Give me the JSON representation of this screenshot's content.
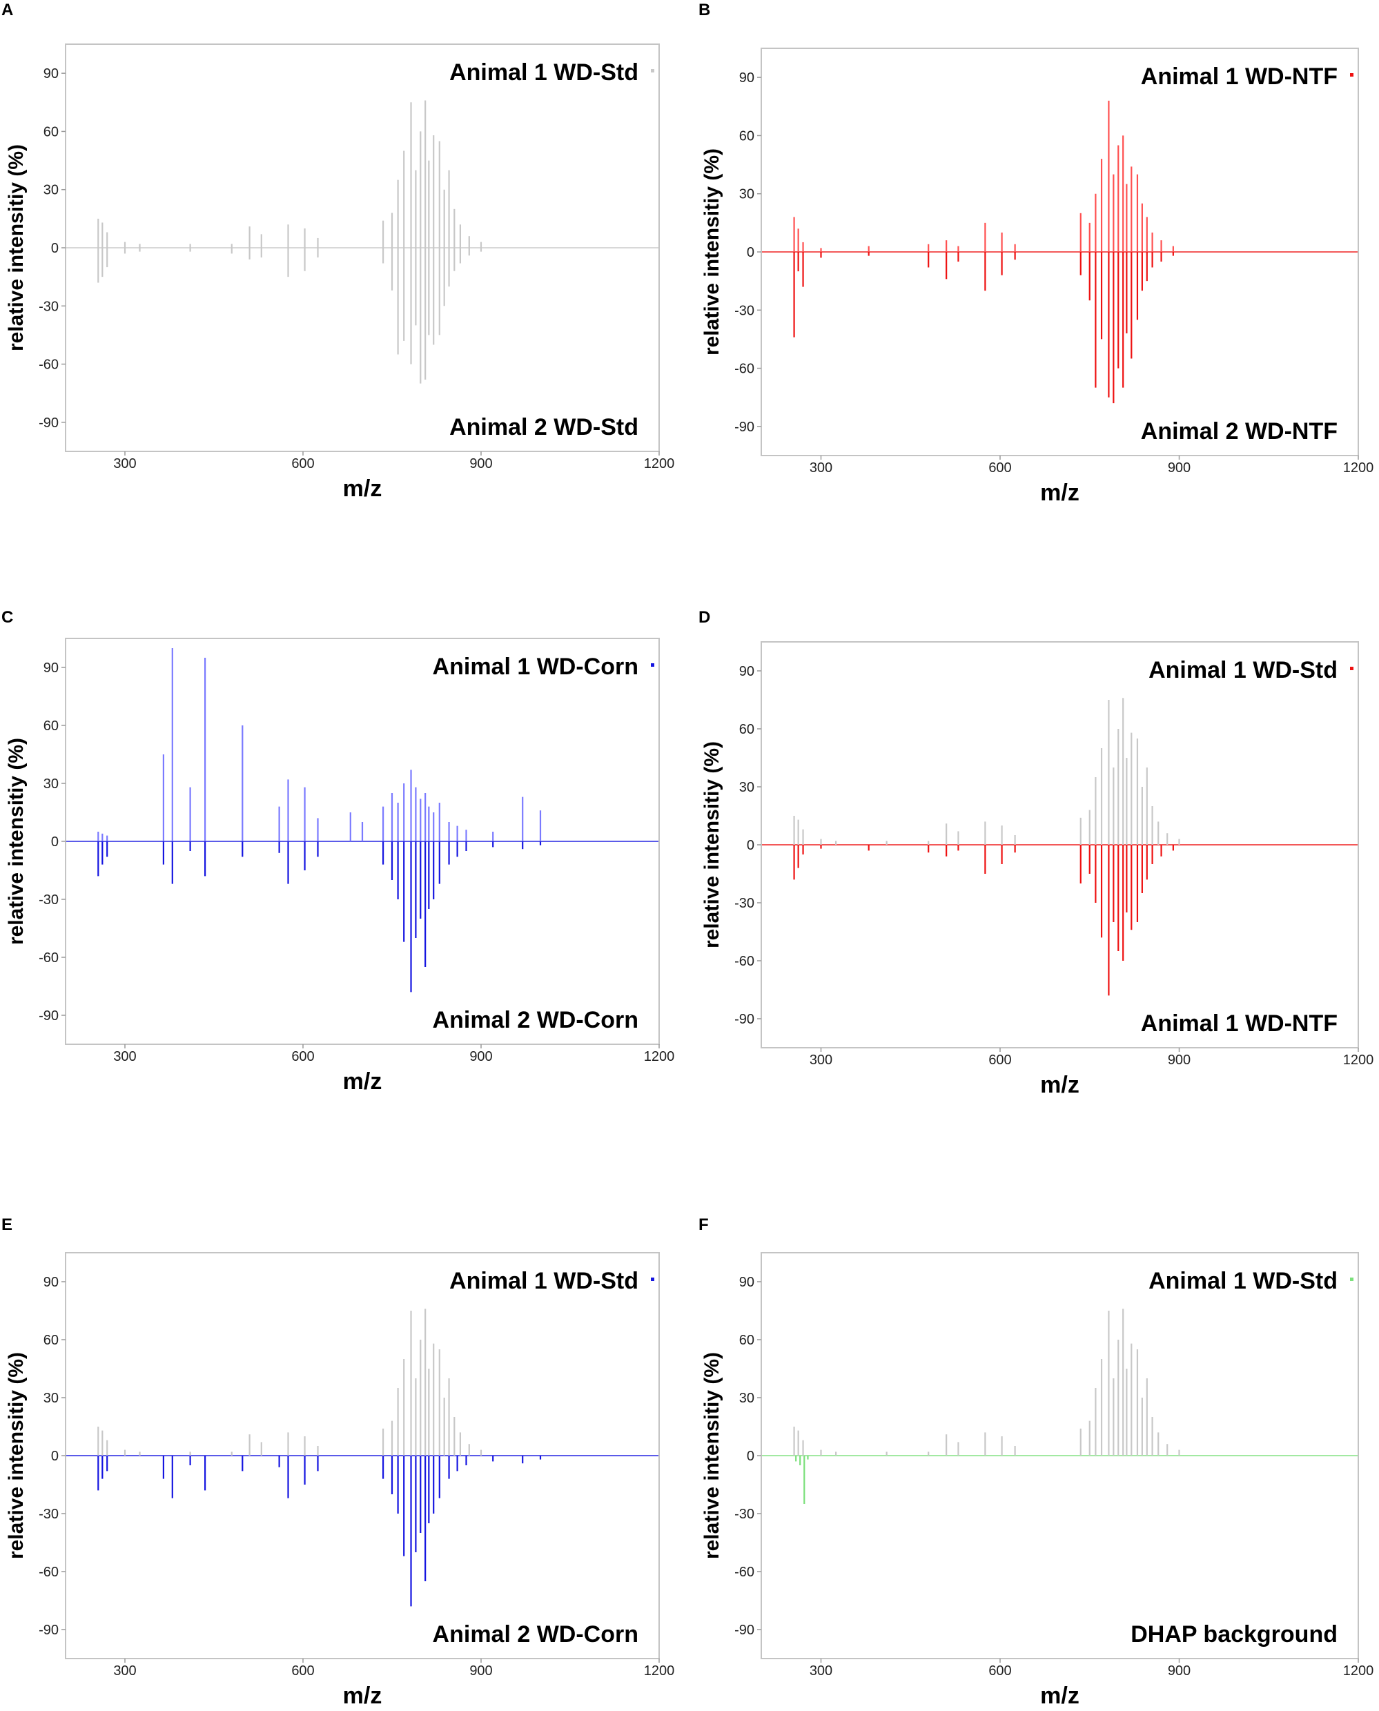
{
  "figure": {
    "panels": [
      "A",
      "B",
      "C",
      "D",
      "E",
      "F"
    ]
  },
  "chart_data": [
    {
      "panel": "A",
      "type": "mirror-spectrum",
      "xlabel": "m/z",
      "ylabel": "relative intensitiy (%)",
      "xlim": [
        200,
        1200
      ],
      "ylim": [
        -105,
        105
      ],
      "xticks": [
        300,
        600,
        900,
        1200
      ],
      "yticks": [
        90,
        60,
        30,
        0,
        -30,
        -60,
        -90
      ],
      "top_label": "Animal 1 WD-Std",
      "bottom_label": "Animal 2 WD-Std",
      "top_color": "#c8c8c8",
      "bottom_color": "#c8c8c8",
      "top_series": [
        [
          255,
          15
        ],
        [
          262,
          13
        ],
        [
          270,
          8
        ],
        [
          300,
          3
        ],
        [
          325,
          2
        ],
        [
          410,
          2
        ],
        [
          480,
          2
        ],
        [
          510,
          11
        ],
        [
          530,
          7
        ],
        [
          575,
          12
        ],
        [
          603,
          10
        ],
        [
          625,
          5
        ],
        [
          735,
          14
        ],
        [
          750,
          18
        ],
        [
          760,
          35
        ],
        [
          770,
          50
        ],
        [
          782,
          75
        ],
        [
          790,
          40
        ],
        [
          798,
          60
        ],
        [
          806,
          76
        ],
        [
          812,
          45
        ],
        [
          820,
          58
        ],
        [
          830,
          55
        ],
        [
          838,
          30
        ],
        [
          846,
          40
        ],
        [
          855,
          20
        ],
        [
          865,
          12
        ],
        [
          880,
          6
        ],
        [
          900,
          3
        ]
      ],
      "bottom_series": [
        [
          255,
          -18
        ],
        [
          262,
          -15
        ],
        [
          270,
          -10
        ],
        [
          300,
          -3
        ],
        [
          325,
          -2
        ],
        [
          410,
          -2
        ],
        [
          480,
          -3
        ],
        [
          510,
          -6
        ],
        [
          530,
          -5
        ],
        [
          575,
          -15
        ],
        [
          603,
          -12
        ],
        [
          625,
          -5
        ],
        [
          735,
          -8
        ],
        [
          750,
          -22
        ],
        [
          760,
          -55
        ],
        [
          770,
          -48
        ],
        [
          782,
          -60
        ],
        [
          790,
          -40
        ],
        [
          798,
          -70
        ],
        [
          806,
          -68
        ],
        [
          812,
          -45
        ],
        [
          820,
          -50
        ],
        [
          830,
          -45
        ],
        [
          838,
          -30
        ],
        [
          846,
          -20
        ],
        [
          855,
          -12
        ],
        [
          865,
          -8
        ],
        [
          880,
          -4
        ],
        [
          900,
          -2
        ]
      ]
    },
    {
      "panel": "B",
      "type": "mirror-spectrum",
      "xlabel": "m/z",
      "ylabel": "relative intensitiy (%)",
      "xlim": [
        200,
        1200
      ],
      "ylim": [
        -105,
        105
      ],
      "xticks": [
        300,
        600,
        900,
        1200
      ],
      "yticks": [
        90,
        60,
        30,
        0,
        -30,
        -60,
        -90
      ],
      "top_label": "Animal 1 WD-NTF",
      "bottom_label": "Animal 2 WD-NTF",
      "top_color": "#ff5050",
      "bottom_color": "#ee1111",
      "top_series": [
        [
          255,
          18
        ],
        [
          262,
          12
        ],
        [
          270,
          5
        ],
        [
          300,
          2
        ],
        [
          380,
          3
        ],
        [
          480,
          4
        ],
        [
          510,
          6
        ],
        [
          530,
          3
        ],
        [
          575,
          15
        ],
        [
          603,
          10
        ],
        [
          625,
          4
        ],
        [
          735,
          20
        ],
        [
          750,
          15
        ],
        [
          760,
          30
        ],
        [
          770,
          48
        ],
        [
          782,
          78
        ],
        [
          790,
          40
        ],
        [
          798,
          55
        ],
        [
          806,
          60
        ],
        [
          812,
          35
        ],
        [
          820,
          44
        ],
        [
          830,
          40
        ],
        [
          838,
          25
        ],
        [
          846,
          18
        ],
        [
          855,
          10
        ],
        [
          870,
          6
        ],
        [
          890,
          3
        ]
      ],
      "bottom_series": [
        [
          255,
          -44
        ],
        [
          262,
          -10
        ],
        [
          270,
          -18
        ],
        [
          300,
          -3
        ],
        [
          380,
          -2
        ],
        [
          480,
          -8
        ],
        [
          510,
          -14
        ],
        [
          530,
          -5
        ],
        [
          575,
          -20
        ],
        [
          603,
          -12
        ],
        [
          625,
          -4
        ],
        [
          735,
          -12
        ],
        [
          750,
          -25
        ],
        [
          760,
          -70
        ],
        [
          770,
          -45
        ],
        [
          782,
          -75
        ],
        [
          790,
          -78
        ],
        [
          798,
          -60
        ],
        [
          806,
          -70
        ],
        [
          812,
          -42
        ],
        [
          820,
          -55
        ],
        [
          830,
          -35
        ],
        [
          838,
          -20
        ],
        [
          846,
          -15
        ],
        [
          855,
          -8
        ],
        [
          870,
          -5
        ],
        [
          890,
          -2
        ]
      ]
    },
    {
      "panel": "C",
      "type": "mirror-spectrum",
      "xlabel": "m/z",
      "ylabel": "relative intensitiy (%)",
      "xlim": [
        200,
        1200
      ],
      "ylim": [
        -105,
        105
      ],
      "xticks": [
        300,
        600,
        900,
        1200
      ],
      "yticks": [
        90,
        60,
        30,
        0,
        -30,
        -60,
        -90
      ],
      "top_label": "Animal 1 WD-Corn",
      "bottom_label": "Animal 2 WD-Corn",
      "top_color": "#7a7aff",
      "bottom_color": "#1515e0",
      "top_series": [
        [
          255,
          5
        ],
        [
          262,
          4
        ],
        [
          270,
          3
        ],
        [
          365,
          45
        ],
        [
          380,
          100
        ],
        [
          410,
          28
        ],
        [
          435,
          95
        ],
        [
          498,
          60
        ],
        [
          560,
          18
        ],
        [
          575,
          32
        ],
        [
          603,
          28
        ],
        [
          625,
          12
        ],
        [
          680,
          15
        ],
        [
          700,
          10
        ],
        [
          735,
          18
        ],
        [
          750,
          25
        ],
        [
          760,
          20
        ],
        [
          770,
          30
        ],
        [
          782,
          37
        ],
        [
          790,
          28
        ],
        [
          798,
          22
        ],
        [
          806,
          25
        ],
        [
          812,
          18
        ],
        [
          820,
          15
        ],
        [
          830,
          20
        ],
        [
          846,
          10
        ],
        [
          860,
          8
        ],
        [
          875,
          6
        ],
        [
          920,
          5
        ],
        [
          970,
          23
        ],
        [
          1000,
          16
        ]
      ],
      "bottom_series": [
        [
          255,
          -18
        ],
        [
          262,
          -12
        ],
        [
          270,
          -8
        ],
        [
          365,
          -12
        ],
        [
          380,
          -22
        ],
        [
          410,
          -5
        ],
        [
          435,
          -18
        ],
        [
          498,
          -8
        ],
        [
          560,
          -6
        ],
        [
          575,
          -22
        ],
        [
          603,
          -15
        ],
        [
          625,
          -8
        ],
        [
          735,
          -12
        ],
        [
          750,
          -20
        ],
        [
          760,
          -30
        ],
        [
          770,
          -52
        ],
        [
          782,
          -78
        ],
        [
          790,
          -50
        ],
        [
          798,
          -40
        ],
        [
          806,
          -65
        ],
        [
          812,
          -35
        ],
        [
          820,
          -30
        ],
        [
          830,
          -22
        ],
        [
          846,
          -12
        ],
        [
          860,
          -8
        ],
        [
          875,
          -5
        ],
        [
          920,
          -3
        ],
        [
          970,
          -4
        ],
        [
          1000,
          -2
        ]
      ]
    },
    {
      "panel": "D",
      "type": "mirror-spectrum",
      "xlabel": "m/z",
      "ylabel": "relative intensitiy (%)",
      "xlim": [
        200,
        1200
      ],
      "ylim": [
        -105,
        105
      ],
      "xticks": [
        300,
        600,
        900,
        1200
      ],
      "yticks": [
        90,
        60,
        30,
        0,
        -30,
        -60,
        -90
      ],
      "top_label": "Animal 1 WD-Std",
      "bottom_label": "Animal 1 WD-NTF",
      "top_color": "#c8c8c8",
      "bottom_color": "#ee1111",
      "top_series": [
        [
          255,
          15
        ],
        [
          262,
          13
        ],
        [
          270,
          8
        ],
        [
          300,
          3
        ],
        [
          325,
          2
        ],
        [
          410,
          2
        ],
        [
          480,
          2
        ],
        [
          510,
          11
        ],
        [
          530,
          7
        ],
        [
          575,
          12
        ],
        [
          603,
          10
        ],
        [
          625,
          5
        ],
        [
          735,
          14
        ],
        [
          750,
          18
        ],
        [
          760,
          35
        ],
        [
          770,
          50
        ],
        [
          782,
          75
        ],
        [
          790,
          40
        ],
        [
          798,
          60
        ],
        [
          806,
          76
        ],
        [
          812,
          45
        ],
        [
          820,
          58
        ],
        [
          830,
          55
        ],
        [
          838,
          30
        ],
        [
          846,
          40
        ],
        [
          855,
          20
        ],
        [
          865,
          12
        ],
        [
          880,
          6
        ],
        [
          900,
          3
        ]
      ],
      "bottom_series": [
        [
          255,
          -18
        ],
        [
          262,
          -12
        ],
        [
          270,
          -5
        ],
        [
          300,
          -2
        ],
        [
          380,
          -3
        ],
        [
          480,
          -4
        ],
        [
          510,
          -6
        ],
        [
          530,
          -3
        ],
        [
          575,
          -15
        ],
        [
          603,
          -10
        ],
        [
          625,
          -4
        ],
        [
          735,
          -20
        ],
        [
          750,
          -15
        ],
        [
          760,
          -30
        ],
        [
          770,
          -48
        ],
        [
          782,
          -78
        ],
        [
          790,
          -40
        ],
        [
          798,
          -55
        ],
        [
          806,
          -60
        ],
        [
          812,
          -35
        ],
        [
          820,
          -44
        ],
        [
          830,
          -40
        ],
        [
          838,
          -25
        ],
        [
          846,
          -18
        ],
        [
          855,
          -10
        ],
        [
          870,
          -6
        ],
        [
          890,
          -3
        ]
      ]
    },
    {
      "panel": "E",
      "type": "mirror-spectrum",
      "xlabel": "m/z",
      "ylabel": "relative intensitiy (%)",
      "xlim": [
        200,
        1200
      ],
      "ylim": [
        -105,
        105
      ],
      "xticks": [
        300,
        600,
        900,
        1200
      ],
      "yticks": [
        90,
        60,
        30,
        0,
        -30,
        -60,
        -90
      ],
      "top_label": "Animal 1 WD-Std",
      "bottom_label": "Animal 2 WD-Corn",
      "top_color": "#c8c8c8",
      "bottom_color": "#1515e0",
      "top_series": [
        [
          255,
          15
        ],
        [
          262,
          13
        ],
        [
          270,
          8
        ],
        [
          300,
          3
        ],
        [
          325,
          2
        ],
        [
          410,
          2
        ],
        [
          480,
          2
        ],
        [
          510,
          11
        ],
        [
          530,
          7
        ],
        [
          575,
          12
        ],
        [
          603,
          10
        ],
        [
          625,
          5
        ],
        [
          735,
          14
        ],
        [
          750,
          18
        ],
        [
          760,
          35
        ],
        [
          770,
          50
        ],
        [
          782,
          75
        ],
        [
          790,
          40
        ],
        [
          798,
          60
        ],
        [
          806,
          76
        ],
        [
          812,
          45
        ],
        [
          820,
          58
        ],
        [
          830,
          55
        ],
        [
          838,
          30
        ],
        [
          846,
          40
        ],
        [
          855,
          20
        ],
        [
          865,
          12
        ],
        [
          880,
          6
        ],
        [
          900,
          3
        ]
      ],
      "bottom_series": [
        [
          255,
          -18
        ],
        [
          262,
          -12
        ],
        [
          270,
          -8
        ],
        [
          365,
          -12
        ],
        [
          380,
          -22
        ],
        [
          410,
          -5
        ],
        [
          435,
          -18
        ],
        [
          498,
          -8
        ],
        [
          560,
          -6
        ],
        [
          575,
          -22
        ],
        [
          603,
          -15
        ],
        [
          625,
          -8
        ],
        [
          735,
          -12
        ],
        [
          750,
          -20
        ],
        [
          760,
          -30
        ],
        [
          770,
          -52
        ],
        [
          782,
          -78
        ],
        [
          790,
          -50
        ],
        [
          798,
          -40
        ],
        [
          806,
          -65
        ],
        [
          812,
          -35
        ],
        [
          820,
          -30
        ],
        [
          830,
          -22
        ],
        [
          846,
          -12
        ],
        [
          860,
          -8
        ],
        [
          875,
          -5
        ],
        [
          920,
          -3
        ],
        [
          970,
          -4
        ],
        [
          1000,
          -2
        ]
      ]
    },
    {
      "panel": "F",
      "type": "mirror-spectrum",
      "xlabel": "m/z",
      "ylabel": "relative intensitiy (%)",
      "xlim": [
        200,
        1200
      ],
      "ylim": [
        -105,
        105
      ],
      "xticks": [
        300,
        600,
        900,
        1200
      ],
      "yticks": [
        90,
        60,
        30,
        0,
        -30,
        -60,
        -90
      ],
      "top_label": "Animal 1 WD-Std",
      "bottom_label": "DHAP background",
      "top_color": "#c8c8c8",
      "bottom_color": "#7be07b",
      "top_series": [
        [
          255,
          15
        ],
        [
          262,
          13
        ],
        [
          270,
          8
        ],
        [
          300,
          3
        ],
        [
          325,
          2
        ],
        [
          410,
          2
        ],
        [
          480,
          2
        ],
        [
          510,
          11
        ],
        [
          530,
          7
        ],
        [
          575,
          12
        ],
        [
          603,
          10
        ],
        [
          625,
          5
        ],
        [
          735,
          14
        ],
        [
          750,
          18
        ],
        [
          760,
          35
        ],
        [
          770,
          50
        ],
        [
          782,
          75
        ],
        [
          790,
          40
        ],
        [
          798,
          60
        ],
        [
          806,
          76
        ],
        [
          812,
          45
        ],
        [
          820,
          58
        ],
        [
          830,
          55
        ],
        [
          838,
          30
        ],
        [
          846,
          40
        ],
        [
          855,
          20
        ],
        [
          865,
          12
        ],
        [
          880,
          6
        ],
        [
          900,
          3
        ]
      ],
      "bottom_series": [
        [
          258,
          -3
        ],
        [
          265,
          -5
        ],
        [
          272,
          -25
        ],
        [
          278,
          -2
        ]
      ]
    }
  ]
}
